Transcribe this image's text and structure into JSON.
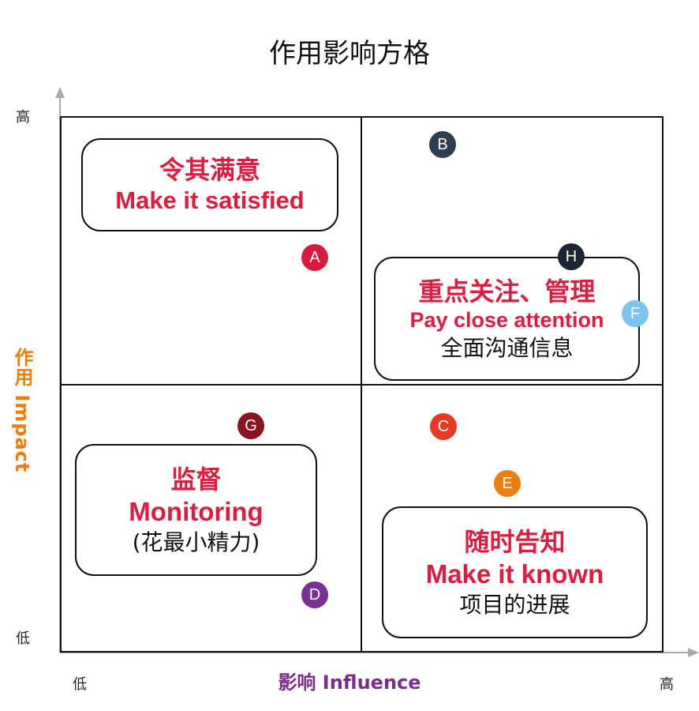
{
  "title": "作用影响方格",
  "y_axis": {
    "label": "作用 Impact",
    "high": "高",
    "low": "低"
  },
  "x_axis": {
    "label": "影响 Influence",
    "low": "低",
    "high": "高"
  },
  "quadrants": {
    "top_left": {
      "cn": "令其满意",
      "en": "Make it satisfied"
    },
    "top_right": {
      "cn": "重点关注、管理",
      "en": "Pay close attention",
      "note": "全面沟通信息"
    },
    "bottom_left": {
      "cn": "监督",
      "en": "Monitoring",
      "note": "(花最小精力)"
    },
    "bottom_right": {
      "cn": "随时告知",
      "en": "Make it known",
      "note": "项目的进展"
    }
  },
  "points": [
    {
      "label": "A",
      "color": "#d81b3c"
    },
    {
      "label": "B",
      "color": "#2c3e50"
    },
    {
      "label": "H",
      "color": "#1c2633"
    },
    {
      "label": "F",
      "color": "#7cc4ee"
    },
    {
      "label": "C",
      "color": "#e63a24"
    },
    {
      "label": "E",
      "color": "#ee7d0f"
    },
    {
      "label": "G",
      "color": "#8b1421"
    },
    {
      "label": "D",
      "color": "#7a2f93"
    }
  ]
}
